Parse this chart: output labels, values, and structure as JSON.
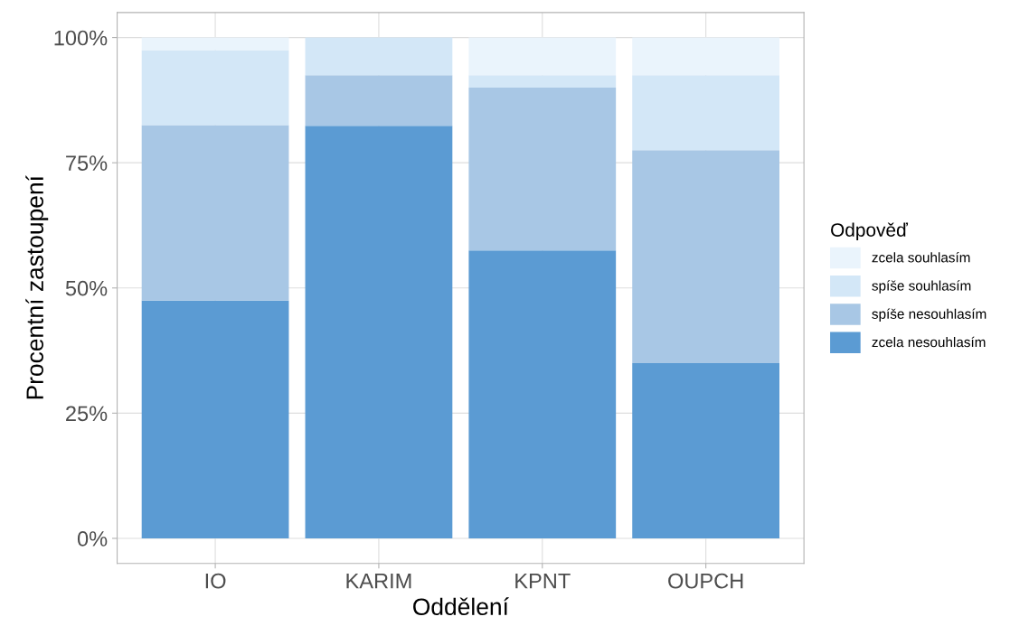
{
  "chart_data": {
    "type": "bar",
    "stacked": true,
    "xlabel": "Oddělení",
    "ylabel": "Procentní zastoupení",
    "legend_title": "Odpověď",
    "categories": [
      "IO",
      "KARIM",
      "KPNT",
      "OUPCH"
    ],
    "series": [
      {
        "name": "zcela nesouhlasím",
        "color": "#5b9bd3",
        "values": [
          47.5,
          82.4,
          57.5,
          35
        ]
      },
      {
        "name": "spíše nesouhlasím",
        "color": "#a8c7e5",
        "values": [
          35,
          10.1,
          32.5,
          42.5
        ]
      },
      {
        "name": "spíše souhlasím",
        "color": "#d3e7f7",
        "values": [
          15,
          7.5,
          2.5,
          15
        ]
      },
      {
        "name": "zcela souhlasím",
        "color": "#eaf4fc",
        "values": [
          2.5,
          0,
          7.5,
          7.5
        ]
      }
    ],
    "ylim": [
      -5,
      105
    ],
    "yticks": [
      {
        "value": 0,
        "label": "0%"
      },
      {
        "value": 25,
        "label": "25%"
      },
      {
        "value": 50,
        "label": "50%"
      },
      {
        "value": 75,
        "label": "75%"
      },
      {
        "value": 100,
        "label": "100%"
      }
    ],
    "grid": true,
    "legend": "right"
  }
}
